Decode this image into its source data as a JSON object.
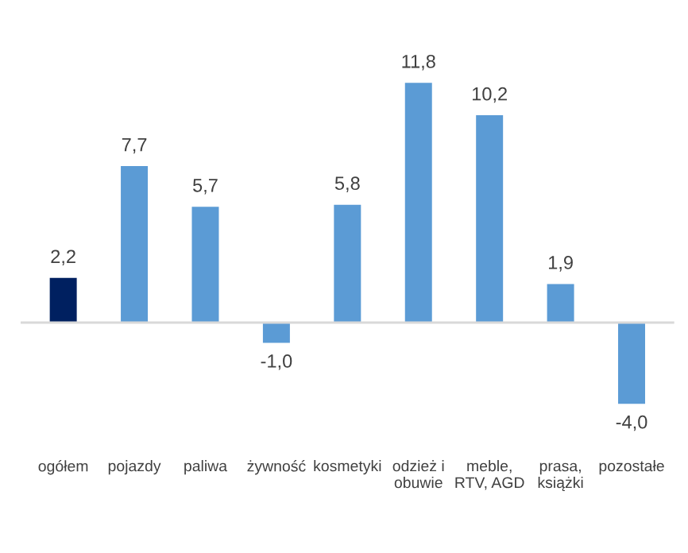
{
  "chart_data": {
    "type": "bar",
    "categories": [
      "ogółem",
      "pojazdy",
      "paliwa",
      "żywność",
      "kosmetyki",
      "odzież i\nobuwie",
      "meble,\nRTV, AGD",
      "prasa,\nksiążki",
      "pozostałe"
    ],
    "values": [
      2.2,
      7.7,
      5.7,
      -1.0,
      5.8,
      11.8,
      10.2,
      1.9,
      -4.0
    ],
    "colors": [
      "#002060",
      "#5b9bd5",
      "#5b9bd5",
      "#5b9bd5",
      "#5b9bd5",
      "#5b9bd5",
      "#5b9bd5",
      "#5b9bd5",
      "#5b9bd5"
    ],
    "value_labels": [
      "2,2",
      "7,7",
      "5,7",
      "-1,0",
      "5,8",
      "11,8",
      "10,2",
      "1,9",
      "-4,0"
    ],
    "grid": false,
    "legend": false
  }
}
